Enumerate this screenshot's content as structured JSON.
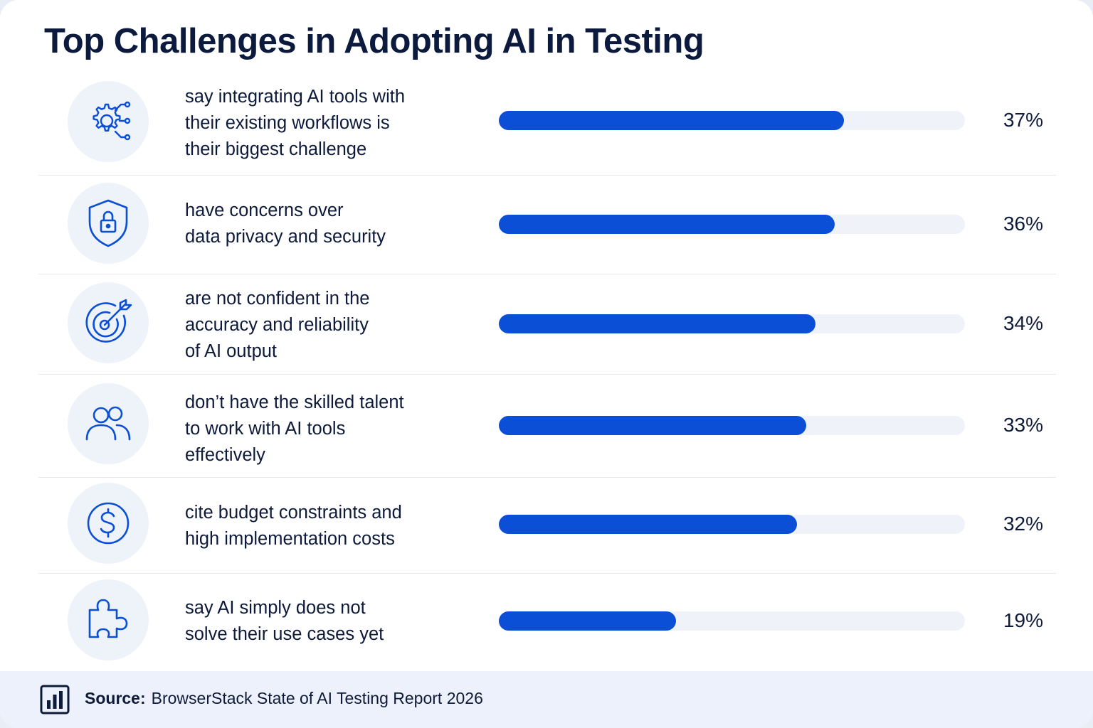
{
  "title": "Top Challenges in Adopting AI in Testing",
  "chart_data": {
    "type": "bar",
    "orientation": "horizontal",
    "title": "Top Challenges in Adopting AI in Testing",
    "xlim": [
      0,
      50
    ],
    "categories": [
      "say integrating AI tools with\ntheir existing workflows is\ntheir biggest challenge",
      "have concerns over\ndata privacy and security",
      "are not confident in the\naccuracy and reliability\nof AI output",
      "don’t have the skilled talent\nto work with AI tools\neffectively",
      "cite budget constraints and\nhigh implementation costs",
      "say AI simply does not\nsolve their use cases yet"
    ],
    "values": [
      37,
      36,
      34,
      33,
      32,
      19
    ],
    "value_labels": [
      "37%",
      "36%",
      "34%",
      "33%",
      "32%",
      "19%"
    ],
    "icons": [
      "gear-network-icon",
      "shield-lock-icon",
      "target-arrow-icon",
      "people-icon",
      "dollar-coin-icon",
      "puzzle-piece-icon"
    ],
    "colors": {
      "bar": "#0a4fd6",
      "track": "#eff2f8",
      "icon": "#0a4fd6",
      "icon_bg": "#eef2f9"
    }
  },
  "footer": {
    "source_label": "Source:",
    "source_text": "BrowserStack State of AI Testing Report 2026",
    "icon": "bar-chart-icon"
  }
}
